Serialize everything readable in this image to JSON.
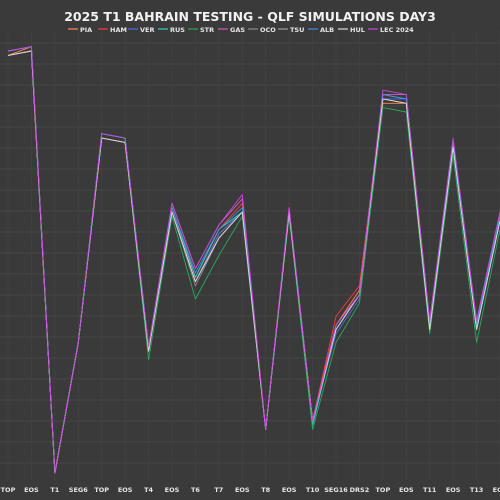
{
  "chart_data": {
    "type": "line",
    "title": "2025 T1 BAHRAIN TESTING - QLF SIMULATIONS DAY3",
    "xlabel": "",
    "ylabel": "",
    "grid": true,
    "legend_placement": "top",
    "x": [
      "TOP",
      "EOS",
      "T1",
      "SEG6",
      "TOP",
      "EOS",
      "T4",
      "EOS",
      "T6",
      "T7",
      "EOS",
      "T8",
      "EOS",
      "T10",
      "SEG16",
      "DRS2",
      "TOP",
      "EOS",
      "T11",
      "EOS",
      "T13",
      "EOS"
    ],
    "series": [
      {
        "name": "PIA",
        "color": "#ff8a4d",
        "values": [
          0.04,
          0.02,
          1.0,
          0.7,
          0.23,
          0.24,
          0.72,
          0.4,
          0.56,
          0.45,
          0.4,
          0.9,
          0.4,
          0.88,
          0.66,
          0.58,
          0.15,
          0.15,
          0.67,
          0.25,
          0.67,
          0.42
        ]
      },
      {
        "name": "HAM",
        "color": "#ff3b3b",
        "values": [
          0.04,
          0.03,
          1.0,
          0.7,
          0.23,
          0.24,
          0.71,
          0.39,
          0.55,
          0.44,
          0.38,
          0.9,
          0.4,
          0.88,
          0.64,
          0.57,
          0.14,
          0.15,
          0.66,
          0.24,
          0.66,
          0.41
        ]
      },
      {
        "name": "VER",
        "color": "#4f6fd6",
        "values": [
          0.03,
          0.02,
          1.0,
          0.7,
          0.22,
          0.23,
          0.71,
          0.4,
          0.56,
          0.45,
          0.4,
          0.9,
          0.4,
          0.88,
          0.68,
          0.6,
          0.14,
          0.14,
          0.67,
          0.25,
          0.66,
          0.42
        ]
      },
      {
        "name": "RUS",
        "color": "#2fd6c2",
        "values": [
          0.03,
          0.02,
          1.0,
          0.7,
          0.22,
          0.23,
          0.72,
          0.39,
          0.55,
          0.44,
          0.4,
          0.9,
          0.4,
          0.89,
          0.67,
          0.59,
          0.13,
          0.14,
          0.67,
          0.25,
          0.66,
          0.42
        ]
      },
      {
        "name": "STR",
        "color": "#2aa860",
        "values": [
          0.04,
          0.03,
          1.0,
          0.7,
          0.23,
          0.24,
          0.74,
          0.41,
          0.6,
          0.5,
          0.41,
          0.9,
          0.41,
          0.9,
          0.7,
          0.61,
          0.16,
          0.17,
          0.68,
          0.27,
          0.7,
          0.44
        ]
      },
      {
        "name": "GAS",
        "color": "#d85ac8",
        "values": [
          0.04,
          0.03,
          1.0,
          0.7,
          0.23,
          0.24,
          0.71,
          0.38,
          0.53,
          0.43,
          0.37,
          0.9,
          0.39,
          0.88,
          0.66,
          0.59,
          0.13,
          0.13,
          0.65,
          0.24,
          0.65,
          0.4
        ]
      },
      {
        "name": "OCO",
        "color": "#8a8a8a",
        "values": [
          0.04,
          0.03,
          1.0,
          0.7,
          0.23,
          0.24,
          0.72,
          0.4,
          0.57,
          0.46,
          0.4,
          0.9,
          0.4,
          0.88,
          0.67,
          0.59,
          0.14,
          0.15,
          0.67,
          0.25,
          0.67,
          0.42
        ]
      },
      {
        "name": "TSU",
        "color": "#a0a0a0",
        "values": [
          0.04,
          0.03,
          1.0,
          0.7,
          0.23,
          0.24,
          0.72,
          0.4,
          0.56,
          0.46,
          0.4,
          0.9,
          0.4,
          0.88,
          0.67,
          0.59,
          0.14,
          0.15,
          0.67,
          0.25,
          0.67,
          0.42
        ]
      },
      {
        "name": "ALB",
        "color": "#3f8fe0",
        "values": [
          0.03,
          0.02,
          1.0,
          0.7,
          0.22,
          0.23,
          0.71,
          0.39,
          0.54,
          0.44,
          0.39,
          0.9,
          0.4,
          0.88,
          0.67,
          0.59,
          0.13,
          0.14,
          0.66,
          0.24,
          0.66,
          0.41
        ]
      },
      {
        "name": "HUL",
        "color": "#d9d9d9",
        "values": [
          0.04,
          0.03,
          1.0,
          0.7,
          0.23,
          0.24,
          0.72,
          0.4,
          0.56,
          0.46,
          0.4,
          0.9,
          0.4,
          0.88,
          0.67,
          0.59,
          0.14,
          0.15,
          0.67,
          0.25,
          0.67,
          0.42
        ]
      },
      {
        "name": "LEC 2024",
        "color": "#c64bd8",
        "values": [
          0.03,
          0.02,
          1.0,
          0.7,
          0.22,
          0.23,
          0.71,
          0.38,
          0.53,
          0.43,
          0.36,
          0.9,
          0.39,
          0.88,
          0.66,
          0.59,
          0.12,
          0.13,
          0.65,
          0.23,
          0.65,
          0.4
        ]
      }
    ]
  }
}
